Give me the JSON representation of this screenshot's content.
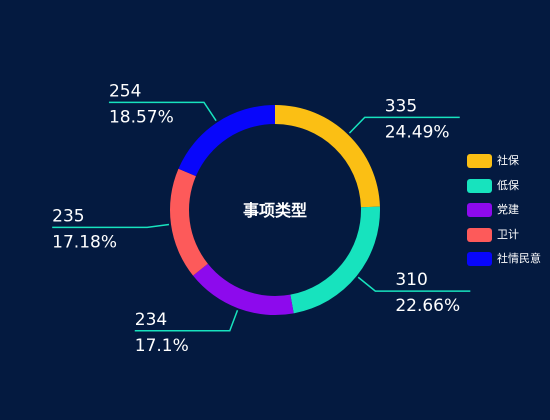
{
  "chart_data": {
    "type": "pie",
    "title": "事项类型",
    "center_label": "事项类型",
    "donut": true,
    "start_angle_deg": 90,
    "direction": "clockwise",
    "legend_position": "right",
    "slices": [
      {
        "name": "社保",
        "value": 335,
        "percent": "24.49%",
        "color": "#fbbf14"
      },
      {
        "name": "低保",
        "value": 310,
        "percent": "22.66%",
        "color": "#17e3be"
      },
      {
        "name": "党建",
        "value": 234,
        "percent": "17.1%",
        "color": "#8d0aed"
      },
      {
        "name": "卫计",
        "value": 235,
        "percent": "17.18%",
        "color": "#fd5a5a"
      },
      {
        "name": "社情民意",
        "value": 254,
        "percent": "18.57%",
        "color": "#0806fb"
      }
    ],
    "leader_line_color": "#17e3be"
  }
}
